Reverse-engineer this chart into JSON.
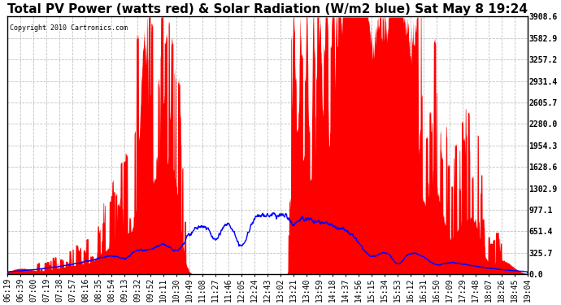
{
  "title": "Total PV Power (watts red) & Solar Radiation (W/m2 blue) Sat May 8 19:24",
  "copyright_text": "Copyright 2010 Cartronics.com",
  "background_color": "#ffffff",
  "plot_bg_color": "#ffffff",
  "y_max": 3908.6,
  "y_min": 0.0,
  "y_ticks": [
    0.0,
    325.7,
    651.4,
    977.1,
    1302.9,
    1628.6,
    1954.3,
    2280.0,
    2605.7,
    2931.4,
    3257.2,
    3582.9,
    3908.6
  ],
  "grid_color": "#bbbbbb",
  "title_fontsize": 11,
  "tick_fontsize": 7,
  "x_tick_labels": [
    "06:19",
    "06:39",
    "07:00",
    "07:19",
    "07:38",
    "07:57",
    "08:16",
    "08:35",
    "08:54",
    "09:13",
    "09:32",
    "09:52",
    "10:11",
    "10:30",
    "10:49",
    "11:08",
    "11:27",
    "11:46",
    "12:05",
    "12:24",
    "12:43",
    "13:02",
    "13:21",
    "13:40",
    "13:59",
    "14:18",
    "14:37",
    "14:56",
    "15:15",
    "15:34",
    "15:53",
    "16:12",
    "16:31",
    "16:50",
    "17:09",
    "17:29",
    "17:48",
    "18:07",
    "18:26",
    "18:45",
    "19:04"
  ],
  "n_labels": 41
}
